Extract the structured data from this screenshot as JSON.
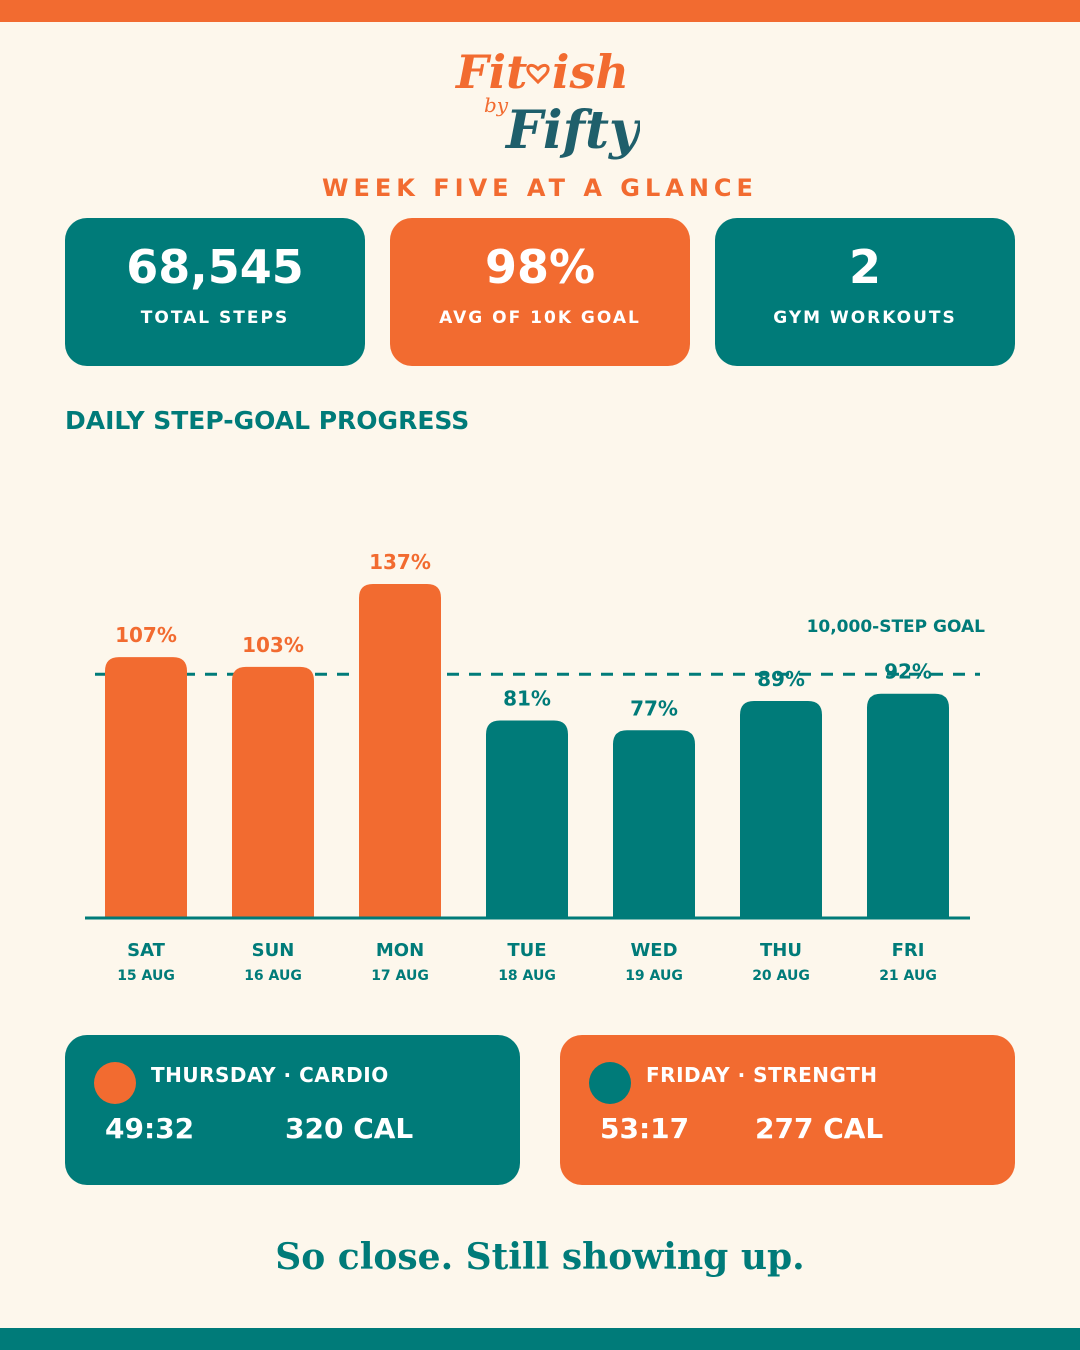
{
  "brand": {
    "line1": "Fit",
    "line1b": "ish",
    "by": "by",
    "line2": "Fifty"
  },
  "headline": "WEEK FIVE AT A GLANCE",
  "stats": [
    {
      "value": "68,545",
      "label": "TOTAL STEPS"
    },
    {
      "value": "98%",
      "label": "AVG OF 10K GOAL"
    },
    {
      "value": "2",
      "label": "GYM WORKOUTS"
    }
  ],
  "section_title": "DAILY STEP-GOAL PROGRESS",
  "colors": {
    "orange": "#f26b30",
    "teal": "#007b79",
    "cream": "#fdf7ec"
  },
  "chart_data": {
    "type": "bar",
    "title": "DAILY STEP-GOAL PROGRESS",
    "categories": [
      "SAT",
      "SUN",
      "MON",
      "TUE",
      "WED",
      "THU",
      "FRI"
    ],
    "dates": [
      "15 AUG",
      "16 AUG",
      "17 AUG",
      "18 AUG",
      "19 AUG",
      "20 AUG",
      "21 AUG"
    ],
    "values": [
      107,
      103,
      137,
      81,
      77,
      89,
      92
    ],
    "value_labels": [
      "107%",
      "103%",
      "137%",
      "81%",
      "77%",
      "89%",
      "92%"
    ],
    "goal_value": 100,
    "goal_label": "10,000-STEP GOAL",
    "ylim": [
      0,
      137
    ],
    "grid": false,
    "xlabel": "",
    "ylabel": ""
  },
  "workouts": [
    {
      "title": "THURSDAY · CARDIO",
      "duration": "49:32",
      "calories": "320 CAL"
    },
    {
      "title": "FRIDAY · STRENGTH",
      "duration": "53:17",
      "calories": "277 CAL"
    }
  ],
  "tagline": "So close. Still showing up."
}
